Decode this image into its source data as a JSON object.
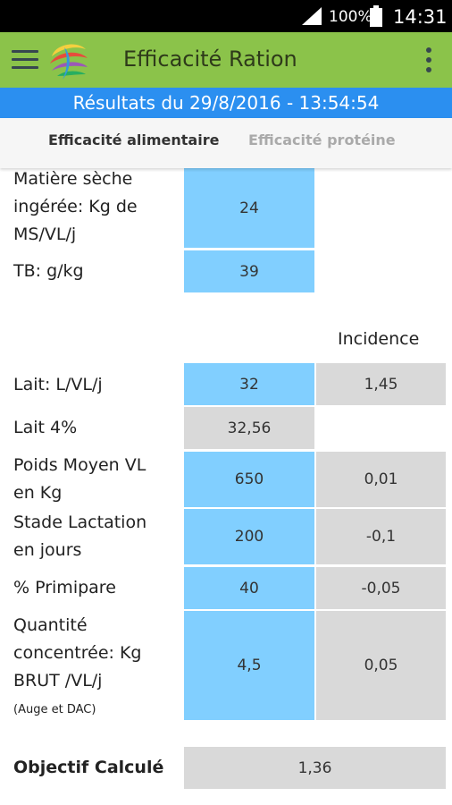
{
  "status": {
    "battery_pct": "100%",
    "time": "14:31"
  },
  "appbar": {
    "title": "Efficacité Ration"
  },
  "results": {
    "text": "Résultats du 29/8/2016 - 13:54:54"
  },
  "tabs": [
    {
      "label": "Efficacité alimentaire",
      "active": true
    },
    {
      "label": "Efficacité protéine",
      "active": false
    }
  ],
  "form": {
    "ms_label_1": "Matière sèche",
    "ms_label_2": "ingérée: Kg de",
    "ms_label_3": "MS/VL/j",
    "ms_value": "24",
    "tb_label": "TB: g/kg",
    "tb_value": "39",
    "incidence_header": "Incidence",
    "lait_label": "Lait: L/VL/j",
    "lait_value": "32",
    "lait_incidence": "1,45",
    "lait4_label": "Lait 4%",
    "lait4_value": "32,56",
    "poids_label_1": "Poids Moyen VL",
    "poids_label_2": "en Kg",
    "poids_value": "650",
    "poids_incidence": "0,01",
    "stade_label_1": "Stade Lactation",
    "stade_label_2": "en jours",
    "stade_value": "200",
    "stade_incidence": "-0,1",
    "prim_label": "% Primipare",
    "prim_value": "40",
    "prim_incidence": "-0,05",
    "conc_label_1": "Quantité",
    "conc_label_2": "concentrée: Kg",
    "conc_label_3": "BRUT /VL/j",
    "conc_note": "(Auge et DAC)",
    "conc_value": "4,5",
    "conc_incidence": "0,05",
    "objectif_label": "Objectif Calculé",
    "objectif_value": "1,36"
  },
  "colors": {
    "appbar": "#8bc34a",
    "results_bar": "#2b8ff0",
    "input_cell": "#81cfff",
    "computed_cell": "#d9d9d9"
  },
  "icons": [
    "cell-signal-icon",
    "battery-icon",
    "hamburger-menu-icon",
    "app-logo",
    "more-vert-icon"
  ]
}
